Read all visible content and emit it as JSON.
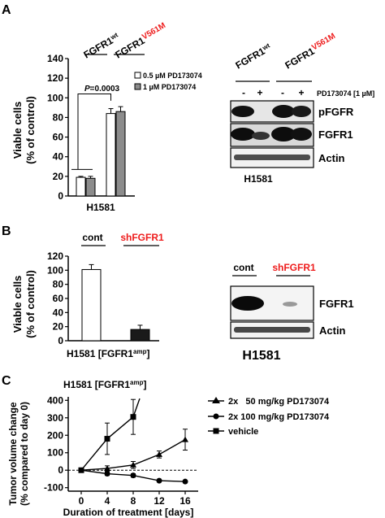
{
  "panels": {
    "a": {
      "letter": "A",
      "groups": [
        "FGFR1",
        "FGFR1"
      ],
      "group_sups": [
        "wt",
        "V561M"
      ],
      "legend": [
        "0.5 µM PD173074",
        "1 µM PD173074"
      ],
      "pvalue": "P=0.0003",
      "cell_line": "H1581",
      "blot": {
        "groups": [
          "FGFR1",
          "FGFR1"
        ],
        "group_sups": [
          "wt",
          "V561M"
        ],
        "treatment_label": "PD173074 [1 µM]",
        "lanes": [
          "-",
          "+",
          "-",
          "+"
        ],
        "bands": [
          "pFGFR",
          "FGFR1",
          "Actin"
        ],
        "cell_line": "H1581"
      }
    },
    "b": {
      "letter": "B",
      "groups": [
        "cont",
        "shFGFR1"
      ],
      "xlabel": "H1581 [FGFR1",
      "xlabel_sup": "amp",
      "xlabel_end": "]",
      "blot": {
        "lanes": [
          "cont",
          "shFGFR1"
        ],
        "bands": [
          "FGFR1",
          "Actin"
        ],
        "cell_line": "H1581"
      }
    },
    "c": {
      "letter": "C",
      "title": "H1581 [FGFR1",
      "title_sup": "amp",
      "title_end": "]",
      "legend": [
        "2x   50 mg/kg PD173074",
        "2x 100 mg/kg PD173074",
        "vehicle"
      ]
    }
  },
  "chart_data": [
    {
      "type": "bar",
      "panel": "A",
      "categories": [
        "FGFR1wt",
        "FGFR1V561M"
      ],
      "series": [
        {
          "name": "0.5 µM PD173074",
          "values": [
            19,
            84
          ],
          "errors": [
            1,
            5
          ],
          "color": "#ffffff"
        },
        {
          "name": "1 µM PD173074",
          "values": [
            18,
            86
          ],
          "errors": [
            2,
            5
          ],
          "color": "#8c8c8c"
        }
      ],
      "ylabel": "Viable cells (% of control)",
      "xlabel": "H1581",
      "ylim": [
        0,
        140
      ],
      "yticks": [
        0,
        20,
        40,
        60,
        80,
        100,
        120,
        140
      ],
      "annotation": "P=0.0003",
      "legend_position": "top-right"
    },
    {
      "type": "bar",
      "panel": "B",
      "categories": [
        "cont",
        "shFGFR1"
      ],
      "values": [
        101,
        16
      ],
      "errors": [
        7,
        6
      ],
      "colors": [
        "#ffffff",
        "#1a1a1a"
      ],
      "ylabel": "Viable cells (% of control)",
      "xlabel": "H1581 [FGFR1amp]",
      "ylim": [
        0,
        120
      ],
      "yticks": [
        0,
        20,
        40,
        60,
        80,
        100,
        120
      ]
    },
    {
      "type": "line",
      "panel": "C",
      "title": "H1581 [FGFR1amp]",
      "xlabel": "Duration of treatment [days]",
      "ylabel": "Tumor volume change (% compared to day 0)",
      "xticks": [
        0,
        4,
        8,
        12,
        16
      ],
      "yticks": [
        -100,
        0,
        100,
        200,
        300,
        400
      ],
      "xlim": [
        -2,
        18
      ],
      "ylim": [
        -120,
        420
      ],
      "series": [
        {
          "name": "2x   50 mg/kg PD173074",
          "marker": "triangle",
          "x": [
            0,
            4,
            8,
            12,
            16
          ],
          "y": [
            0,
            10,
            30,
            90,
            175
          ],
          "errors": [
            0,
            15,
            20,
            20,
            60
          ]
        },
        {
          "name": "2x 100 mg/kg PD173074",
          "marker": "circle",
          "x": [
            0,
            4,
            8,
            12,
            16
          ],
          "y": [
            0,
            -20,
            -30,
            -60,
            -65
          ],
          "errors": [
            0,
            10,
            10,
            5,
            5
          ]
        },
        {
          "name": "vehicle",
          "marker": "square",
          "x": [
            0,
            4,
            8,
            9
          ],
          "y": [
            0,
            180,
            305,
            410
          ],
          "errors": [
            0,
            90,
            100,
            0
          ]
        }
      ],
      "legend_position": "right"
    }
  ]
}
